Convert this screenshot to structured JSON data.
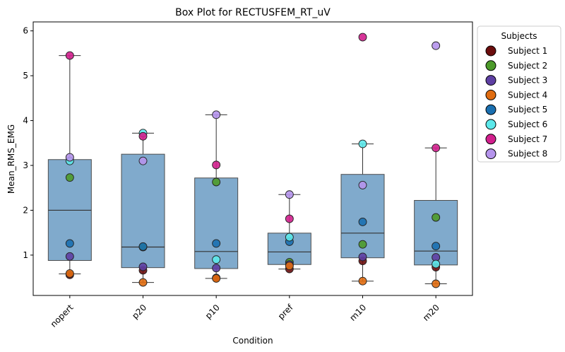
{
  "chart_data": {
    "type": "box",
    "title": "Box Plot for RECTUSFEM_RT_uV",
    "xlabel": "Condition",
    "ylabel": "Mean_RMS_EMG",
    "ylim": [
      0.1,
      6.2
    ],
    "yticks": [
      1,
      2,
      3,
      4,
      5,
      6
    ],
    "categories": [
      "nopert",
      "p20",
      "p10",
      "pref",
      "m10",
      "m20"
    ],
    "boxes": [
      {
        "q1": 0.88,
        "median": 2.0,
        "q3": 3.13,
        "whisker_low": 0.58,
        "whisker_high": 5.45
      },
      {
        "q1": 0.72,
        "median": 1.18,
        "q3": 3.25,
        "whisker_low": 0.39,
        "whisker_high": 3.72
      },
      {
        "q1": 0.7,
        "median": 1.08,
        "q3": 2.72,
        "whisker_low": 0.48,
        "whisker_high": 4.13
      },
      {
        "q1": 0.79,
        "median": 1.07,
        "q3": 1.49,
        "whisker_low": 0.69,
        "whisker_high": 2.35
      },
      {
        "q1": 0.94,
        "median": 1.49,
        "q3": 2.8,
        "whisker_low": 0.42,
        "whisker_high": 3.48
      },
      {
        "q1": 0.78,
        "median": 1.09,
        "q3": 2.22,
        "whisker_low": 0.36,
        "whisker_high": 3.39
      }
    ],
    "box_color": "#6a9bc3",
    "legend_title": "Subjects",
    "legend_position": "outside-right",
    "series": [
      {
        "name": "Subject 1",
        "color": "#6b0d0d",
        "values": [
          0.56,
          0.66,
          0.49,
          0.69,
          0.87,
          0.73
        ]
      },
      {
        "name": "Subject 2",
        "color": "#4c9a2a",
        "values": [
          2.73,
          1.18,
          2.63,
          0.84,
          1.24,
          1.84
        ]
      },
      {
        "name": "Subject 3",
        "color": "#5e3fa3",
        "values": [
          0.97,
          0.74,
          0.71,
          0.79,
          0.96,
          0.95
        ]
      },
      {
        "name": "Subject 4",
        "color": "#e06c10",
        "values": [
          0.59,
          0.39,
          0.48,
          0.76,
          0.42,
          0.36
        ]
      },
      {
        "name": "Subject 5",
        "color": "#1a6fb0",
        "values": [
          1.26,
          1.19,
          1.26,
          1.3,
          1.74,
          1.2
        ]
      },
      {
        "name": "Subject 6",
        "color": "#5ce8ea",
        "values": [
          3.1,
          3.72,
          0.9,
          1.4,
          3.48,
          0.8
        ]
      },
      {
        "name": "Subject 7",
        "color": "#d21f8d",
        "values": [
          5.45,
          3.65,
          3.01,
          1.81,
          5.86,
          3.39
        ]
      },
      {
        "name": "Subject 8",
        "color": "#b594ec",
        "values": [
          3.18,
          3.1,
          4.13,
          2.35,
          2.56,
          5.67
        ]
      }
    ]
  }
}
